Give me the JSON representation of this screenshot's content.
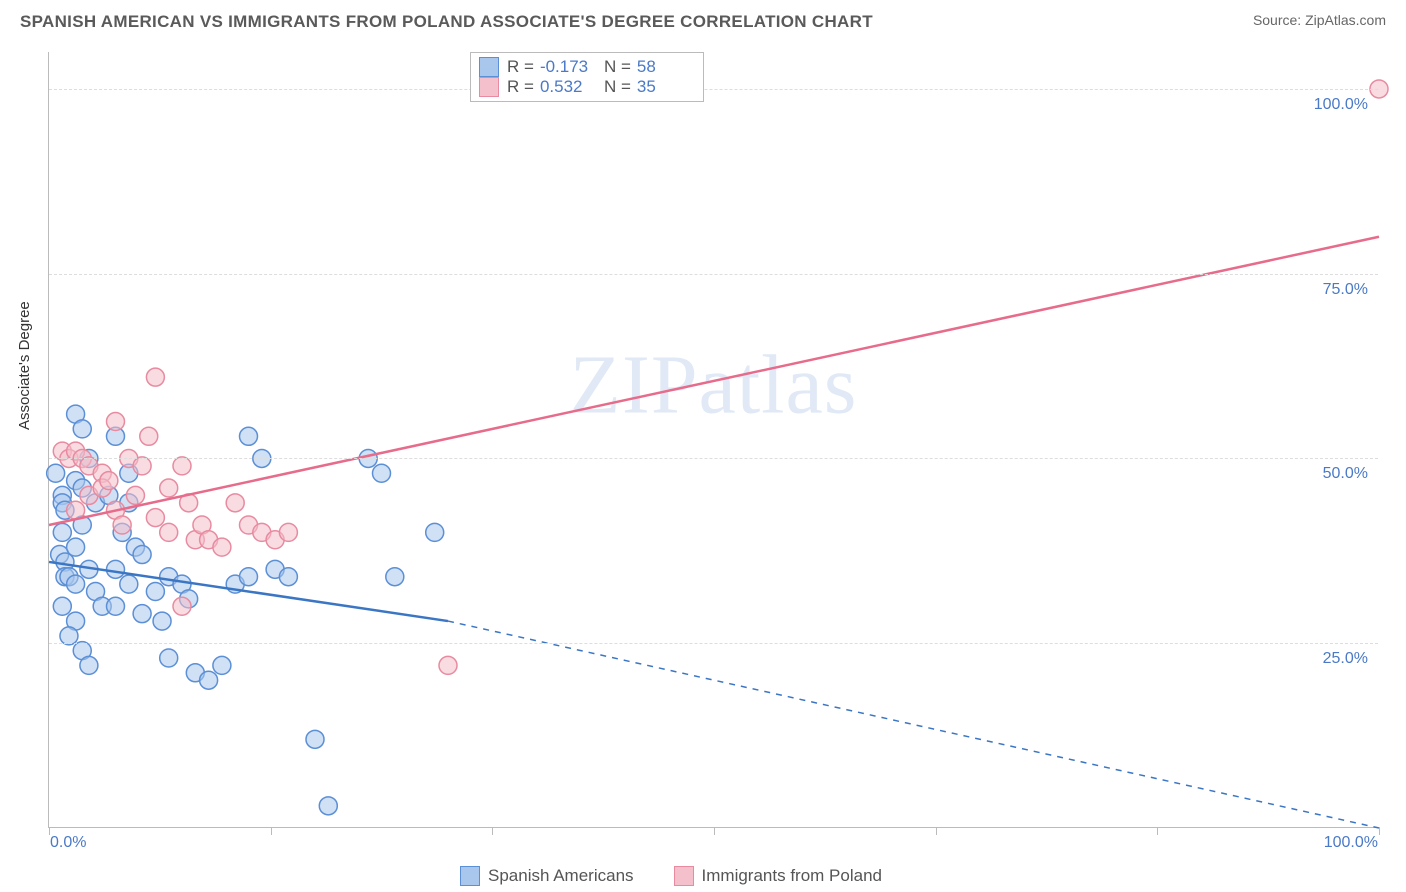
{
  "header": {
    "title": "SPANISH AMERICAN VS IMMIGRANTS FROM POLAND ASSOCIATE'S DEGREE CORRELATION CHART",
    "source_label": "Source: ",
    "source_name": "ZipAtlas.com"
  },
  "chart": {
    "type": "scatter",
    "watermark": "ZIPatlas",
    "ylabel": "Associate's Degree",
    "xlim": [
      0,
      100
    ],
    "ylim": [
      0,
      105
    ],
    "ytick_step": 25,
    "ytick_labels": [
      "25.0%",
      "50.0%",
      "75.0%",
      "100.0%"
    ],
    "xtick_positions": [
      0,
      16.7,
      33.3,
      50,
      66.7,
      83.3,
      100
    ],
    "x_corner_labels": [
      "0.0%",
      "100.0%"
    ],
    "background_color": "#ffffff",
    "grid_color": "#dddddd",
    "axis_color": "#bbbbbb",
    "marker_radius": 9,
    "marker_opacity": 0.55,
    "line_width": 2.5,
    "series": [
      {
        "id": "spanish",
        "label": "Spanish Americans",
        "fill": "#a9c7ec",
        "stroke": "#5b8fd6",
        "line_color": "#3b76c4",
        "r_value": "-0.173",
        "n_value": "58",
        "trend": {
          "x1": 0,
          "y1": 36,
          "x2": 30,
          "y2": 28,
          "dashed_x2": 100,
          "dashed_y2": 0
        },
        "points": [
          [
            0.5,
            48
          ],
          [
            1,
            45
          ],
          [
            1,
            44
          ],
          [
            1.2,
            43
          ],
          [
            1,
            40
          ],
          [
            0.8,
            37
          ],
          [
            1.2,
            36
          ],
          [
            1.2,
            34
          ],
          [
            2,
            56
          ],
          [
            2.5,
            54
          ],
          [
            3,
            50
          ],
          [
            2,
            47
          ],
          [
            2.5,
            46
          ],
          [
            3.5,
            44
          ],
          [
            2.5,
            41
          ],
          [
            2,
            38
          ],
          [
            1.5,
            34
          ],
          [
            2,
            33
          ],
          [
            3,
            35
          ],
          [
            3.5,
            32
          ],
          [
            1,
            30
          ],
          [
            2,
            28
          ],
          [
            1.5,
            26
          ],
          [
            2.5,
            24
          ],
          [
            3,
            22
          ],
          [
            4,
            30
          ],
          [
            5,
            35
          ],
          [
            4.5,
            45
          ],
          [
            5,
            53
          ],
          [
            6,
            48
          ],
          [
            6,
            44
          ],
          [
            5.5,
            40
          ],
          [
            6.5,
            38
          ],
          [
            7,
            37
          ],
          [
            6,
            33
          ],
          [
            5,
            30
          ],
          [
            7,
            29
          ],
          [
            8,
            32
          ],
          [
            8.5,
            28
          ],
          [
            9,
            34
          ],
          [
            9,
            23
          ],
          [
            10,
            33
          ],
          [
            10.5,
            31
          ],
          [
            11,
            21
          ],
          [
            12,
            20
          ],
          [
            13,
            22
          ],
          [
            14,
            33
          ],
          [
            15,
            53
          ],
          [
            16,
            50
          ],
          [
            15,
            34
          ],
          [
            17,
            35
          ],
          [
            18,
            34
          ],
          [
            20,
            12
          ],
          [
            21,
            3
          ],
          [
            24,
            50
          ],
          [
            25,
            48
          ],
          [
            29,
            40
          ],
          [
            26,
            34
          ]
        ]
      },
      {
        "id": "poland",
        "label": "Immigrants from Poland",
        "fill": "#f4c0cb",
        "stroke": "#e88ba0",
        "line_color": "#e76b8a",
        "r_value": "0.532",
        "n_value": "35",
        "trend": {
          "x1": 0,
          "y1": 41,
          "x2": 100,
          "y2": 80
        },
        "points": [
          [
            1,
            51
          ],
          [
            1.5,
            50
          ],
          [
            2,
            51
          ],
          [
            2.5,
            50
          ],
          [
            3,
            49
          ],
          [
            3,
            45
          ],
          [
            2,
            43
          ],
          [
            4,
            48
          ],
          [
            4,
            46
          ],
          [
            4.5,
            47
          ],
          [
            5,
            55
          ],
          [
            5,
            43
          ],
          [
            5.5,
            41
          ],
          [
            6,
            50
          ],
          [
            6.5,
            45
          ],
          [
            7,
            49
          ],
          [
            7.5,
            53
          ],
          [
            8,
            42
          ],
          [
            8,
            61
          ],
          [
            9,
            46
          ],
          [
            9,
            40
          ],
          [
            10,
            49
          ],
          [
            10.5,
            44
          ],
          [
            11,
            39
          ],
          [
            11.5,
            41
          ],
          [
            12,
            39
          ],
          [
            13,
            38
          ],
          [
            14,
            44
          ],
          [
            15,
            41
          ],
          [
            16,
            40
          ],
          [
            17,
            39
          ],
          [
            18,
            40
          ],
          [
            10,
            30
          ],
          [
            30,
            22
          ],
          [
            100,
            100
          ]
        ]
      }
    ]
  },
  "stats_box": {
    "r_prefix": "R =",
    "n_prefix": "N ="
  }
}
